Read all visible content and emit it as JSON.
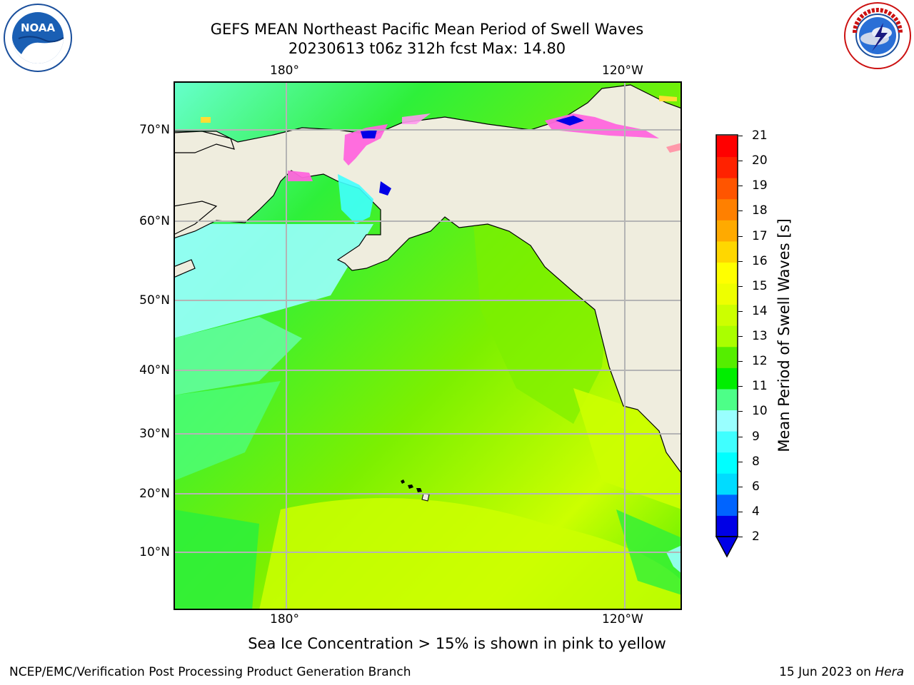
{
  "header": {
    "title_line1": "GEFS MEAN Northeast Pacific Mean Period of Swell Waves",
    "title_line2": "20230613 t06z 312h fcst   Max: 14.80"
  },
  "map": {
    "lon_labels": [
      "180°",
      "120°W"
    ],
    "lat_labels": [
      "70°N",
      "60°N",
      "50°N",
      "40°N",
      "30°N",
      "20°N",
      "10°N"
    ],
    "colors": {
      "land": "#efedde",
      "coast": "#000000",
      "grid": "#b4b4b4"
    }
  },
  "colorbar": {
    "label": "Mean Period of Swell Waves [s]",
    "ticks": [
      "21",
      "20",
      "19",
      "18",
      "17",
      "16",
      "15",
      "14",
      "13",
      "12",
      "11",
      "10",
      "9",
      "8",
      "6",
      "4",
      "2"
    ],
    "colors": [
      "#0000e6",
      "#0064ff",
      "#00dcff",
      "#00ffff",
      "#40ffff",
      "#99ffff",
      "#4dff88",
      "#00ee00",
      "#55ee00",
      "#aaff00",
      "#ccff00",
      "#eeff00",
      "#ffff00",
      "#ffd700",
      "#ffaa00",
      "#ff8000",
      "#ff5500",
      "#ff2200",
      "#ff0000"
    ],
    "extend": "min"
  },
  "note": "Sea Ice Concentration > 15% is shown in pink to yellow",
  "footer": {
    "left": "NCEP/EMC/Verification Post Processing Product Generation Branch",
    "date": "15 Jun 2023 on",
    "machine": "Hera"
  },
  "logos": {
    "left": "noaa-logo",
    "right": "national-weather-service-logo"
  }
}
